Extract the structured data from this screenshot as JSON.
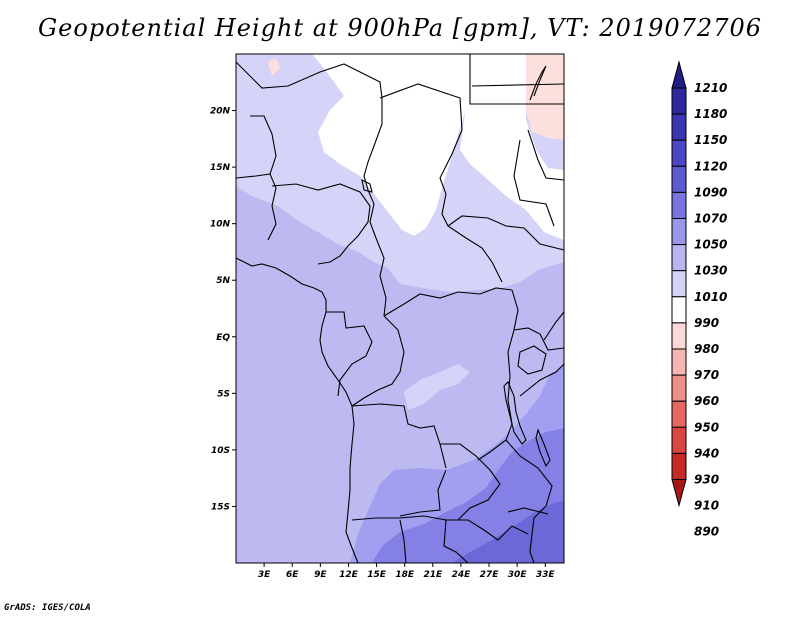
{
  "title": "Geopotential Height at 900hPa [gpm], VT: 2019072706",
  "footer": "GrADS: IGES/COLA",
  "chart_data": {
    "type": "heatmap",
    "title": "Geopotential Height at 900hPa [gpm], VT: 2019072706",
    "variable": "Geopotential Height",
    "level": "900hPa",
    "units": "gpm",
    "valid_time": "2019072706",
    "xlim": [
      0,
      35
    ],
    "ylim": [
      -20,
      25
    ],
    "x_ticks": [
      {
        "value": 3,
        "label": "3E"
      },
      {
        "value": 6,
        "label": "6E"
      },
      {
        "value": 9,
        "label": "9E"
      },
      {
        "value": 12,
        "label": "12E"
      },
      {
        "value": 15,
        "label": "15E"
      },
      {
        "value": 18,
        "label": "18E"
      },
      {
        "value": 21,
        "label": "21E"
      },
      {
        "value": 24,
        "label": "24E"
      },
      {
        "value": 27,
        "label": "27E"
      },
      {
        "value": 30,
        "label": "30E"
      },
      {
        "value": 33,
        "label": "33E"
      }
    ],
    "y_ticks": [
      {
        "value": 20,
        "label": "20N"
      },
      {
        "value": 15,
        "label": "15N"
      },
      {
        "value": 10,
        "label": "10N"
      },
      {
        "value": 5,
        "label": "5N"
      },
      {
        "value": 0,
        "label": "EQ"
      },
      {
        "value": -5,
        "label": "5S"
      },
      {
        "value": -10,
        "label": "10S"
      },
      {
        "value": -15,
        "label": "15S"
      }
    ],
    "colorbar": {
      "labels": [
        "1210",
        "1180",
        "1150",
        "1120",
        "1090",
        "1070",
        "1050",
        "1030",
        "1010",
        "990",
        "980",
        "970",
        "960",
        "950",
        "940",
        "930",
        "910",
        "890"
      ],
      "colors": [
        "#221c87",
        "#2e2a9e",
        "#3a36b2",
        "#4a46c4",
        "#5e5ad2",
        "#7a75de",
        "#9a96e8",
        "#b8b5f0",
        "#d4d3f7",
        "#ffffff",
        "#fcd8d6",
        "#f7b5b1",
        "#ef8f8a",
        "#e66862",
        "#da4742",
        "#c52a26",
        "#a81714"
      ]
    },
    "regions": [
      {
        "name": "sahel-high-1010-1030",
        "value_range": "1010-1030"
      },
      {
        "name": "sahara-990-1010",
        "value_range": "990-1010"
      },
      {
        "name": "egypt-980-990",
        "value_range": "980-990"
      },
      {
        "name": "gulf-guinea-1030-1050",
        "value_range": "1030-1050"
      },
      {
        "name": "congo-basin-1030-1050",
        "value_range": "1030-1050"
      },
      {
        "name": "southern-africa-1050-1070",
        "value_range": "1050-1070"
      },
      {
        "name": "southeast-1070-1090",
        "value_range": "1070-1090"
      }
    ]
  }
}
